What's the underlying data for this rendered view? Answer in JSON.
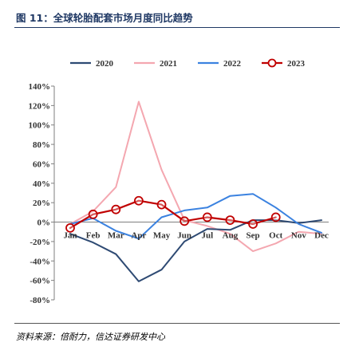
{
  "header": {
    "title": "图 11：全球轮胎配套市场月度同比趋势"
  },
  "footer": {
    "source": "资料来源：倍耐力，信达证券研发中心"
  },
  "colors": {
    "s2020": "#2e4a73",
    "s2021": "#f4a7b0",
    "s2022": "#3b82e0",
    "s2023": "#c00000",
    "title": "#1f3864"
  },
  "chart_data": {
    "type": "line",
    "title": "",
    "xlabel": "",
    "ylabel": "",
    "categories": [
      "Jan",
      "Feb",
      "Mar",
      "Apr",
      "May",
      "Jun",
      "Jul",
      "Aug",
      "Sep",
      "Oct",
      "Nov",
      "Dec"
    ],
    "ylim": [
      -80,
      140
    ],
    "yticks": [
      140,
      120,
      100,
      80,
      60,
      40,
      20,
      0,
      -20,
      -40,
      -60,
      -80
    ],
    "ytick_labels": [
      "140%",
      "120%",
      "100%",
      "80%",
      "60%",
      "40%",
      "20%",
      "0%",
      "-20%",
      "-40%",
      "-60%",
      "-80%"
    ],
    "grid": false,
    "legend_position": "top",
    "series": [
      {
        "name": "2020",
        "values": [
          -12,
          -21,
          -33,
          -61,
          -49,
          -20,
          -7,
          -8,
          2,
          2,
          -1,
          2
        ]
      },
      {
        "name": "2021",
        "values": [
          -2,
          11,
          36,
          124,
          54,
          2,
          -4,
          -12,
          -30,
          -22,
          -10,
          -12
        ]
      },
      {
        "name": "2022",
        "values": [
          -2,
          4,
          -9,
          -17,
          5,
          12,
          15,
          27,
          29,
          15,
          -2,
          -11
        ]
      },
      {
        "name": "2023",
        "values": [
          -6,
          8,
          13,
          22,
          18,
          1,
          5,
          2,
          -2,
          5,
          null,
          null
        ]
      }
    ]
  }
}
